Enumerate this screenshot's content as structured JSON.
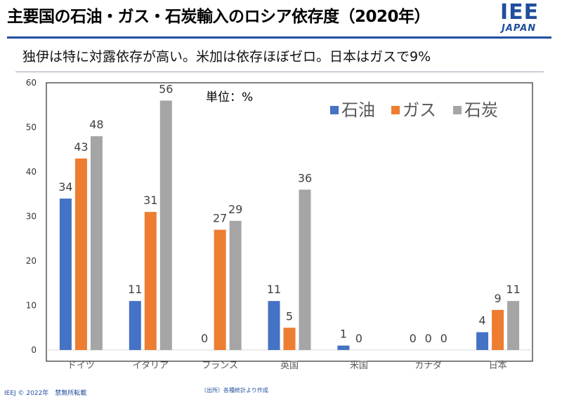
{
  "title": "主要国の石油・ガス・石炭輸入のロシア依存度（2020年）",
  "subtitle": "独伊は特に対露依存が高い。米加は依存ほぼゼロ。日本はガスで9%",
  "logo": {
    "main": "IEE",
    "sub": "JAPAN"
  },
  "footer": {
    "copyright": "IEEJ © 2022年　禁無所転載",
    "source": "（出所）各種統計より作成"
  },
  "colors": {
    "oil": "#4472c4",
    "gas": "#ed7d31",
    "coal": "#a5a5a5",
    "brand": "#1f4f9e"
  },
  "chart_data": {
    "type": "bar",
    "unit_label": "単位：%",
    "categories": [
      "ドイツ",
      "イタリア",
      "フランス",
      "英国",
      "米国",
      "カナダ",
      "日本"
    ],
    "series": [
      {
        "name": "石油",
        "values": [
          34,
          11,
          0,
          11,
          1,
          0,
          4
        ]
      },
      {
        "name": "ガス",
        "values": [
          43,
          31,
          27,
          5,
          0,
          0,
          9
        ]
      },
      {
        "name": "石炭",
        "values": [
          48,
          56,
          29,
          36,
          0,
          0,
          11
        ]
      }
    ],
    "data_labels": [
      [
        "34",
        "11",
        "0",
        "11",
        "1",
        "0",
        "4"
      ],
      [
        "43",
        "31",
        "27",
        "5",
        "0",
        "0",
        "9"
      ],
      [
        "48",
        "56",
        "29",
        "36",
        "",
        "0",
        "11"
      ]
    ],
    "ylim": [
      0,
      60
    ],
    "yticks": [
      0,
      10,
      20,
      30,
      40,
      50,
      60
    ],
    "legend_position": "top-right",
    "grid": false
  }
}
